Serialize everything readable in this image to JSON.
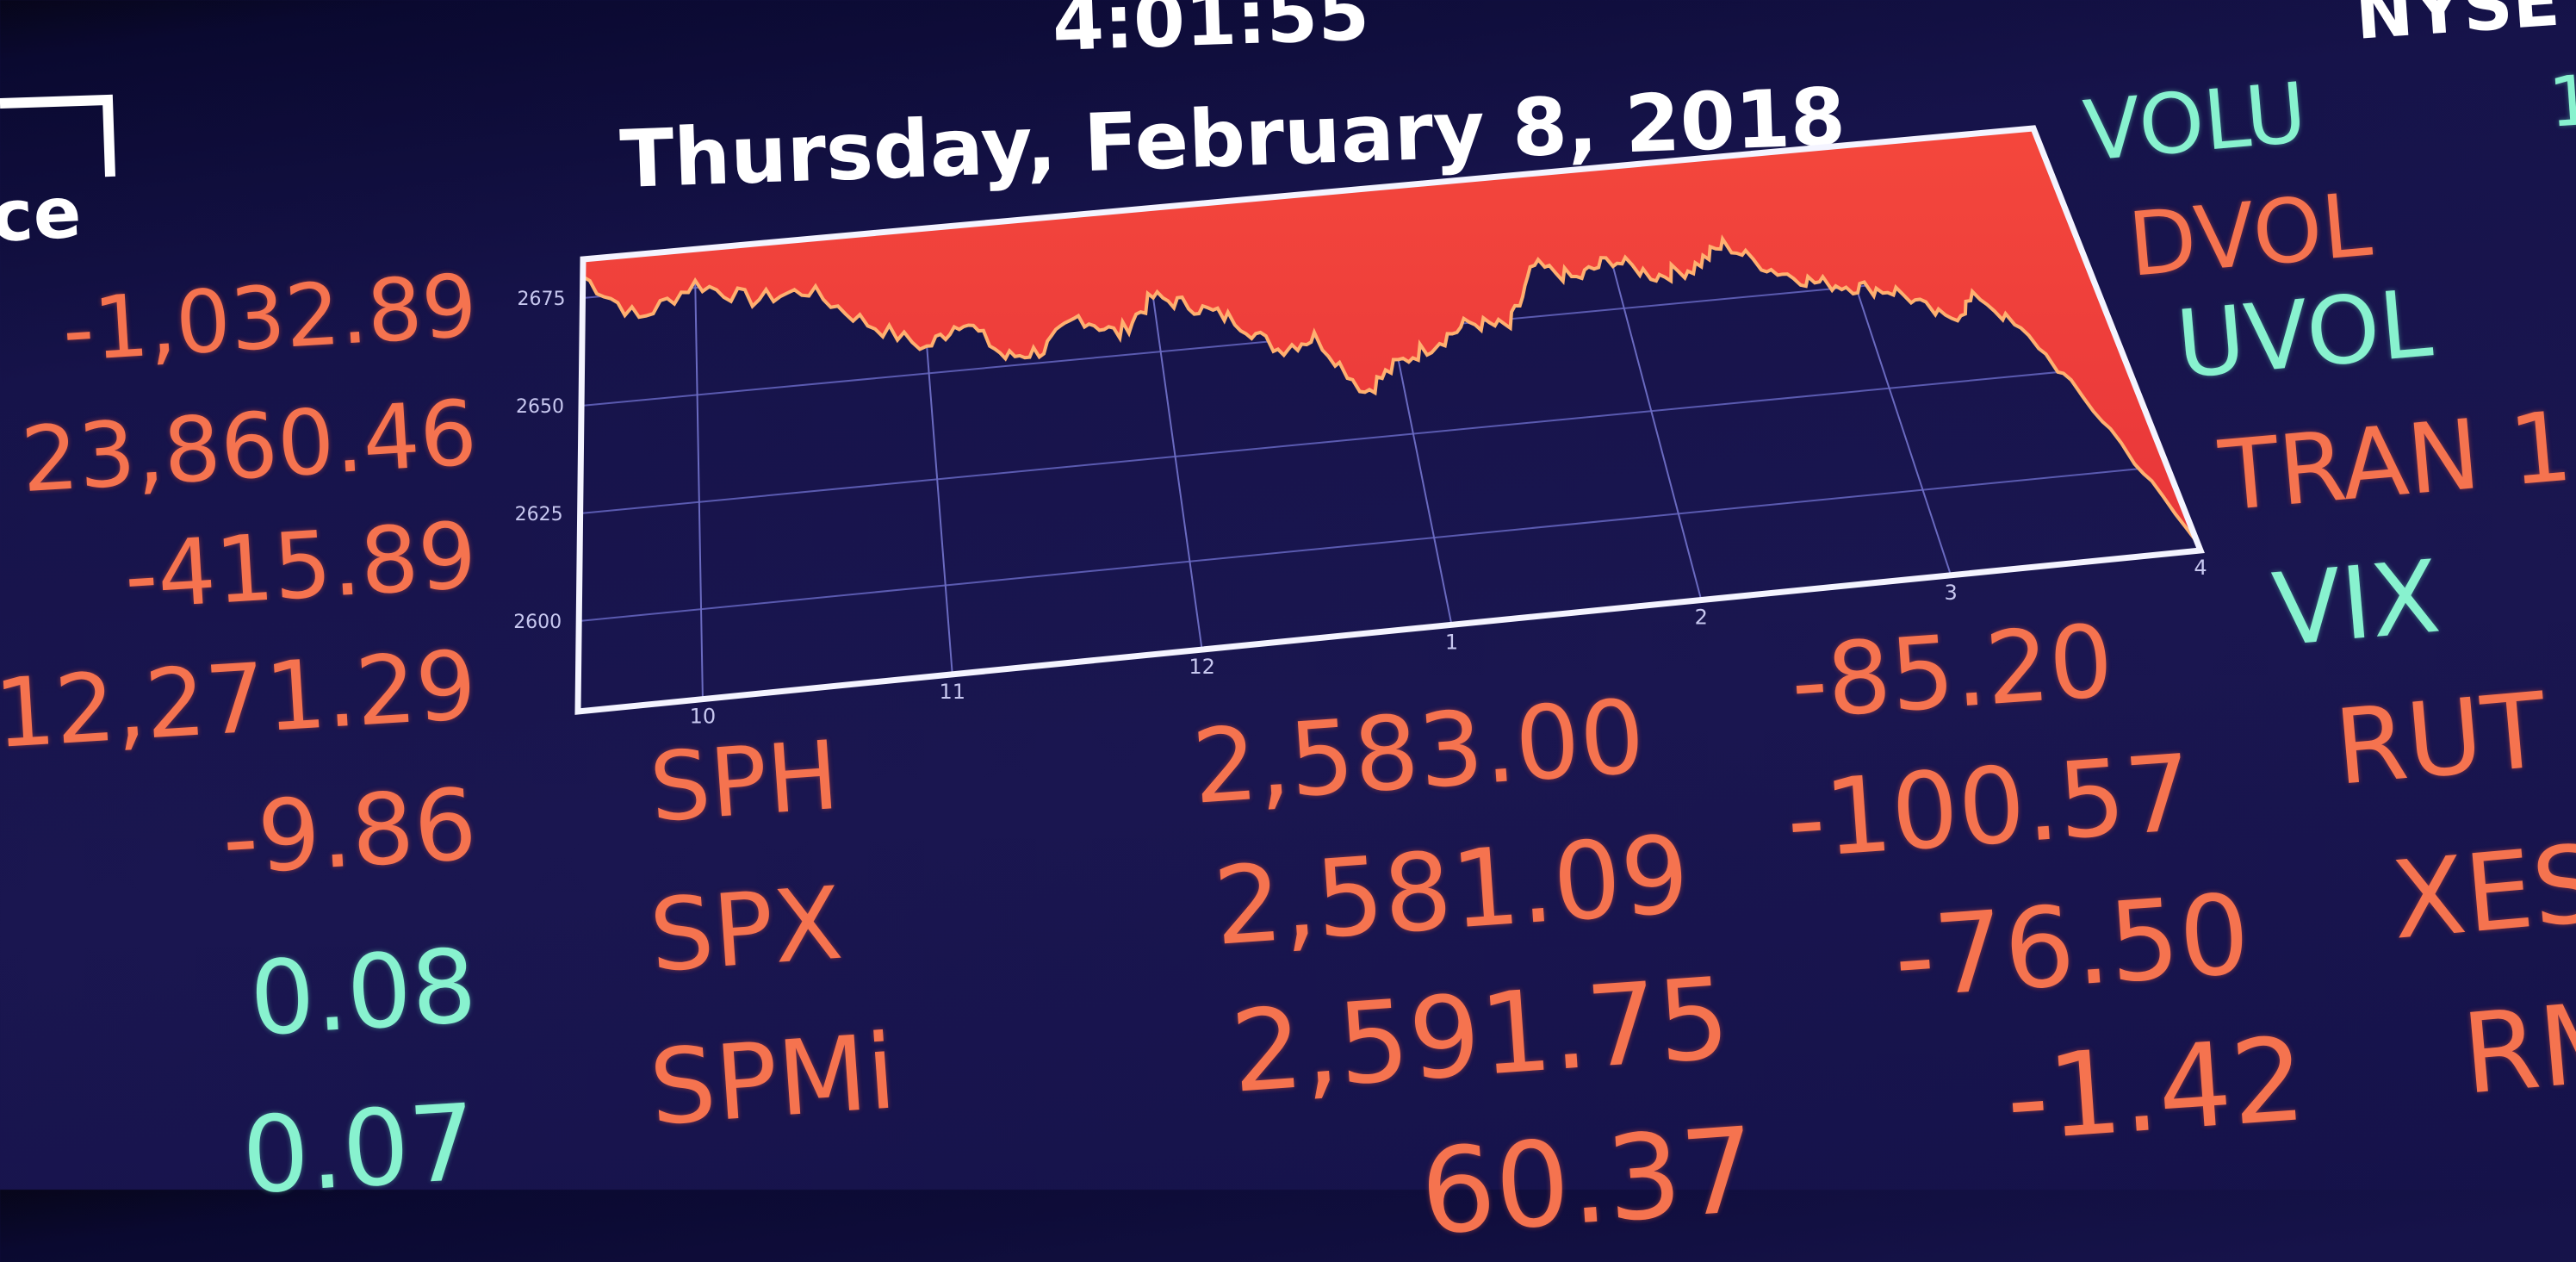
{
  "header": {
    "time": "4:01:55",
    "date": "Thursday, February 8, 2018",
    "exchange": "NYSE",
    "logo_text": "ce"
  },
  "colors": {
    "background": "#16134a",
    "negative": "#f5734f",
    "positive": "#88f2cf",
    "chart_fill": "#f0403a",
    "chart_line": "#ffb070"
  },
  "left_column": [
    {
      "value": "-1,032.89",
      "tone": "negative"
    },
    {
      "value": "23,860.46",
      "tone": "negative"
    },
    {
      "value": "-415.89",
      "tone": "negative"
    },
    {
      "value": "12,271.29",
      "tone": "negative"
    },
    {
      "value": "-9.86",
      "tone": "negative"
    },
    {
      "value": "0.08",
      "tone": "positive"
    },
    {
      "value": "0.07",
      "tone": "positive"
    }
  ],
  "quotes": [
    {
      "symbol": "SPH",
      "value": "2,583.00",
      "change": "-85.20"
    },
    {
      "symbol": "SPX",
      "value": "2,581.09",
      "change": "-100.57"
    },
    {
      "symbol": "SPMi",
      "value": "2,591.75",
      "change": "-76.50"
    },
    {
      "symbol": "",
      "value": "60.37",
      "change": "-1.42"
    }
  ],
  "right_column": [
    {
      "label": "VOLU",
      "tone": "positive"
    },
    {
      "label": "DVOL",
      "tone": "negative"
    },
    {
      "label": "UVOL",
      "tone": "positive"
    },
    {
      "label": "TRAN 1",
      "tone": "negative"
    },
    {
      "label": "VIX",
      "tone": "positive"
    },
    {
      "label": "RUT",
      "tone": "negative"
    },
    {
      "label": "XES",
      "tone": "negative"
    },
    {
      "label": "RM",
      "tone": "negative"
    }
  ],
  "chart_data": {
    "type": "area",
    "xlabel": "",
    "ylabel": "",
    "x_ticks": [
      "10",
      "11",
      "12",
      "1",
      "2",
      "3",
      "4"
    ],
    "y_ticks": [
      "2600",
      "2625",
      "2650",
      "2675"
    ],
    "xlim": [
      "9:30",
      "4:00"
    ],
    "ylim": [
      2579,
      2684
    ],
    "grid": true,
    "x": [
      "9:30",
      "9:45",
      "10:00",
      "10:15",
      "10:30",
      "10:45",
      "11:00",
      "11:10",
      "11:20",
      "11:30",
      "11:40",
      "11:50",
      "12:00",
      "12:10",
      "12:20",
      "12:30",
      "12:40",
      "12:50",
      "1:00",
      "1:10",
      "1:20",
      "1:30",
      "1:40",
      "1:50",
      "2:00",
      "2:10",
      "2:20",
      "2:30",
      "2:40",
      "2:50",
      "3:00",
      "3:10",
      "3:20",
      "3:30",
      "3:40",
      "3:50",
      "4:00"
    ],
    "values": [
      2680,
      2669,
      2676,
      2671,
      2672,
      2663,
      2656,
      2662,
      2652,
      2653,
      2660,
      2655,
      2663,
      2660,
      2656,
      2648,
      2650,
      2636,
      2642,
      2646,
      2650,
      2648,
      2662,
      2658,
      2662,
      2657,
      2658,
      2663,
      2656,
      2652,
      2650,
      2648,
      2640,
      2645,
      2632,
      2610,
      2581
    ]
  }
}
